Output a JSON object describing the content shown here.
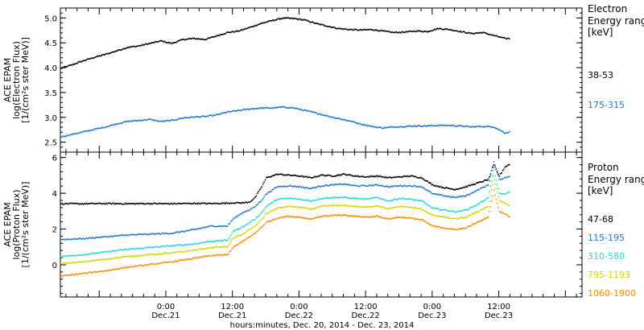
{
  "xaxis": {
    "label": "hours:minutes, Dec. 20, 2014 - Dec. 23, 2014",
    "range_hours": [
      -19,
      75
    ],
    "ticks": [
      {
        "hour": 0,
        "time": "0:00",
        "date": "Dec.21"
      },
      {
        "hour": 12,
        "time": "12:00",
        "date": "Dec.21"
      },
      {
        "hour": 24,
        "time": "0:00",
        "date": "Dec.22"
      },
      {
        "hour": 36,
        "time": "12:00",
        "date": "Dec.22"
      },
      {
        "hour": 48,
        "time": "0:00",
        "date": "Dec.23"
      },
      {
        "hour": 60,
        "time": "12:00",
        "date": "Dec.23"
      }
    ]
  },
  "chart_data": [
    {
      "type": "scatter",
      "panel": "electron",
      "ylabel_lines": [
        "ACE EPAM",
        "log(Electron Flux)",
        "[1/(cm²s ster MeV)]"
      ],
      "ylim": [
        2.3,
        5.2
      ],
      "yticks": [
        "2.5",
        "3.0",
        "3.5",
        "4.0",
        "4.5",
        "5.0"
      ],
      "legend_title_lines": [
        "Electron",
        "Energy range",
        "[keV]"
      ],
      "series": [
        {
          "name": "38-53",
          "color": "#000000",
          "x": [
            -19,
            -17,
            -15,
            -13,
            -11,
            -9,
            -7,
            -5,
            -3,
            -1,
            1,
            3,
            5,
            7,
            9,
            11,
            13,
            15,
            17,
            19,
            21,
            23,
            25,
            27,
            29,
            31,
            33,
            35,
            37,
            39,
            41,
            43,
            45,
            47,
            49,
            51,
            53,
            55,
            57,
            59,
            61,
            62
          ],
          "y": [
            4.0,
            4.07,
            4.15,
            4.22,
            4.28,
            4.35,
            4.42,
            4.45,
            4.5,
            4.55,
            4.5,
            4.58,
            4.6,
            4.58,
            4.65,
            4.72,
            4.75,
            4.82,
            4.9,
            4.96,
            5.01,
            5.0,
            4.97,
            4.9,
            4.85,
            4.8,
            4.78,
            4.77,
            4.78,
            4.75,
            4.72,
            4.73,
            4.75,
            4.74,
            4.8,
            4.78,
            4.74,
            4.7,
            4.72,
            4.66,
            4.6,
            4.6
          ]
        },
        {
          "name": "175-315",
          "color": "#1f78d1",
          "x": [
            -19,
            -17,
            -15,
            -13,
            -11,
            -9,
            -7,
            -5,
            -3,
            -1,
            1,
            3,
            5,
            7,
            9,
            11,
            13,
            15,
            17,
            19,
            21,
            23,
            25,
            27,
            29,
            31,
            33,
            35,
            37,
            39,
            41,
            43,
            45,
            47,
            49,
            51,
            53,
            55,
            57,
            59,
            61,
            62
          ],
          "y": [
            2.62,
            2.67,
            2.72,
            2.77,
            2.82,
            2.88,
            2.93,
            2.95,
            2.97,
            2.93,
            2.95,
            3.0,
            3.02,
            3.03,
            3.06,
            3.12,
            3.15,
            3.18,
            3.2,
            3.2,
            3.22,
            3.2,
            3.15,
            3.1,
            3.04,
            2.99,
            2.94,
            2.88,
            2.83,
            2.8,
            2.82,
            2.83,
            2.84,
            2.84,
            2.85,
            2.85,
            2.84,
            2.82,
            2.83,
            2.82,
            2.7,
            2.72
          ]
        }
      ]
    },
    {
      "type": "scatter",
      "panel": "proton",
      "ylabel_lines": [
        "ACE EPAM",
        "log(Proton Flux)",
        "[1/(cm²s ster MeV)]"
      ],
      "ylim": [
        -1.8,
        6.3
      ],
      "yticks": [
        "0",
        "2",
        "4",
        "6"
      ],
      "legend_title_lines": [
        "Proton",
        "Energy range",
        "[keV]"
      ],
      "series": [
        {
          "name": "47-68",
          "color": "#000000",
          "x": [
            -19,
            -15,
            -11,
            -7,
            -3,
            1,
            5,
            8,
            11,
            12,
            14,
            15,
            16,
            17,
            18,
            20,
            22,
            24,
            26,
            28,
            30,
            32,
            34,
            36,
            38,
            40,
            42,
            44,
            46,
            48,
            50,
            52,
            54,
            56,
            58,
            59,
            60,
            61,
            62
          ],
          "y": [
            3.45,
            3.45,
            3.46,
            3.45,
            3.46,
            3.45,
            3.47,
            3.46,
            3.48,
            3.5,
            3.5,
            3.55,
            3.8,
            4.3,
            4.9,
            5.1,
            5.05,
            5.0,
            4.9,
            5.05,
            5.0,
            5.1,
            5.0,
            4.95,
            5.0,
            4.9,
            4.95,
            5.0,
            4.9,
            4.5,
            4.35,
            4.25,
            4.4,
            4.6,
            4.8,
            5.6,
            5.0,
            5.5,
            5.7
          ]
        },
        {
          "name": "115-195",
          "color": "#1f78d1",
          "x": [
            -19,
            -15,
            -11,
            -7,
            -3,
            1,
            5,
            8,
            11,
            12,
            14,
            15,
            16,
            17,
            18,
            20,
            22,
            24,
            26,
            28,
            30,
            32,
            34,
            36,
            38,
            40,
            42,
            44,
            46,
            48,
            50,
            52,
            54,
            56,
            58,
            59,
            60,
            61,
            62
          ],
          "y": [
            1.45,
            1.5,
            1.6,
            1.7,
            1.75,
            1.8,
            2.0,
            2.2,
            2.2,
            2.6,
            3.0,
            3.1,
            3.3,
            3.6,
            4.0,
            4.4,
            4.45,
            4.4,
            4.3,
            4.45,
            4.5,
            4.55,
            4.45,
            4.45,
            4.5,
            4.4,
            4.45,
            4.45,
            4.4,
            4.0,
            3.9,
            3.8,
            3.9,
            4.2,
            4.5,
            5.8,
            4.8,
            4.9,
            5.0
          ]
        },
        {
          "name": "310-580",
          "color": "#2ad6d6",
          "x": [
            -19,
            -15,
            -11,
            -7,
            -3,
            1,
            5,
            8,
            11,
            12,
            14,
            15,
            16,
            17,
            18,
            20,
            22,
            24,
            26,
            28,
            30,
            32,
            34,
            36,
            38,
            40,
            42,
            44,
            46,
            48,
            50,
            52,
            54,
            56,
            58,
            59,
            60,
            61,
            62
          ],
          "y": [
            0.5,
            0.6,
            0.75,
            0.9,
            1.0,
            1.1,
            1.2,
            1.35,
            1.4,
            1.9,
            2.2,
            2.4,
            2.6,
            2.9,
            3.3,
            3.7,
            3.75,
            3.7,
            3.6,
            3.75,
            3.8,
            3.8,
            3.75,
            3.7,
            3.8,
            3.6,
            3.75,
            3.7,
            3.6,
            3.2,
            3.1,
            3.0,
            3.1,
            3.4,
            3.8,
            5.3,
            4.0,
            4.0,
            4.1
          ]
        },
        {
          "name": "795-1193",
          "color": "#d6d600",
          "x": [
            -19,
            -15,
            -11,
            -7,
            -3,
            1,
            5,
            8,
            11,
            12,
            14,
            15,
            16,
            17,
            18,
            20,
            22,
            24,
            26,
            28,
            30,
            32,
            34,
            36,
            38,
            40,
            42,
            44,
            46,
            48,
            50,
            52,
            54,
            56,
            58,
            59,
            60,
            61,
            62
          ],
          "y": [
            0.1,
            0.2,
            0.35,
            0.5,
            0.6,
            0.7,
            0.85,
            1.0,
            1.05,
            1.5,
            1.8,
            2.0,
            2.2,
            2.5,
            2.9,
            3.2,
            3.3,
            3.25,
            3.15,
            3.3,
            3.35,
            3.35,
            3.3,
            3.25,
            3.35,
            3.15,
            3.3,
            3.25,
            3.15,
            2.8,
            2.7,
            2.6,
            2.7,
            3.0,
            3.3,
            4.8,
            3.6,
            3.5,
            3.3
          ]
        },
        {
          "name": "1060-1900",
          "color": "#ff8c00",
          "x": [
            -19,
            -15,
            -11,
            -7,
            -3,
            1,
            5,
            8,
            11,
            12,
            14,
            15,
            16,
            17,
            18,
            20,
            22,
            24,
            26,
            28,
            30,
            32,
            34,
            36,
            38,
            40,
            42,
            44,
            46,
            48,
            50,
            52,
            54,
            56,
            58,
            59,
            60,
            61,
            62
          ],
          "y": [
            -0.6,
            -0.45,
            -0.3,
            -0.1,
            0.05,
            0.2,
            0.4,
            0.55,
            0.6,
            1.0,
            1.4,
            1.6,
            1.8,
            2.1,
            2.4,
            2.65,
            2.75,
            2.7,
            2.6,
            2.75,
            2.8,
            2.8,
            2.75,
            2.7,
            2.75,
            2.6,
            2.7,
            2.65,
            2.55,
            2.2,
            2.1,
            2.0,
            2.1,
            2.4,
            2.7,
            4.2,
            3.0,
            2.9,
            2.7
          ]
        }
      ]
    }
  ]
}
